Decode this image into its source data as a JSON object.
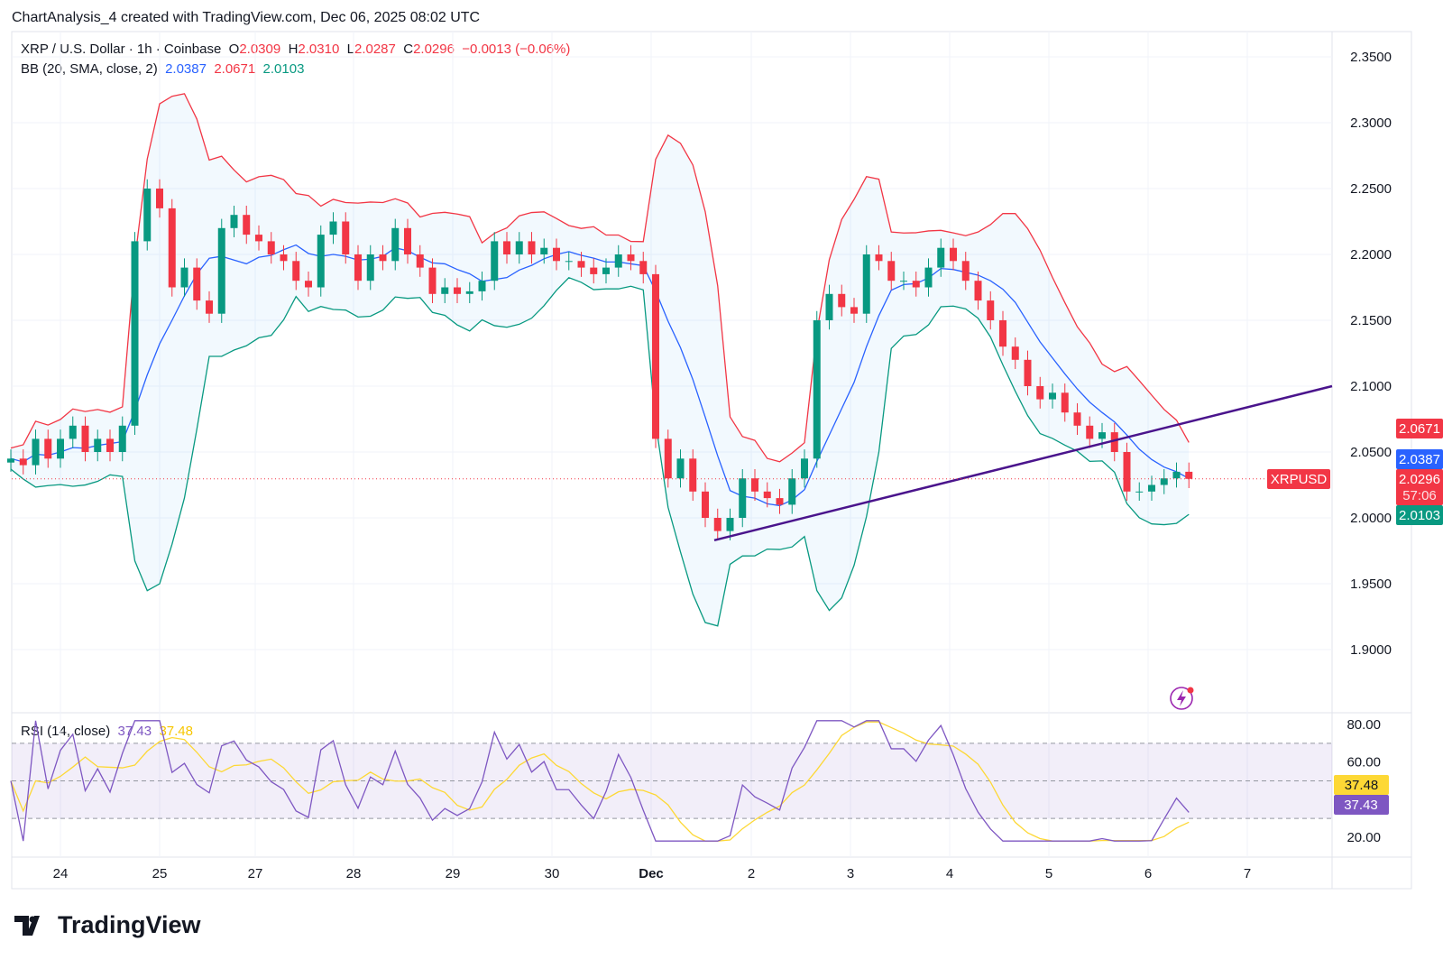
{
  "caption": "ChartAnalysis_4 created with TradingView.com, Dec 06, 2025 08:02 UTC",
  "symbol": {
    "title": "XRP / U.S. Dollar · 1h · Coinbase",
    "o_label": "O",
    "o": "2.0309",
    "h_label": "H",
    "h": "2.0310",
    "l_label": "L",
    "l": "2.0287",
    "c_label": "C",
    "c": "2.0296",
    "change": "−0.0013 (−0.06%)"
  },
  "bb": {
    "title": "BB (20, SMA, close, 2)",
    "basis": "2.0387",
    "upper": "2.0671",
    "lower": "2.0103"
  },
  "rsi": {
    "title": "RSI (14, close)",
    "value": "37.43",
    "ma": "37.48"
  },
  "badges": {
    "upper": "2.0671",
    "basis": "2.0387",
    "price": "2.0296",
    "countdown": "57:06",
    "lower": "2.0103",
    "ticker": "XRPUSD",
    "rsi_ma": "37.48",
    "rsi": "37.43"
  },
  "logo": "TradingView",
  "colors": {
    "up": "#089981",
    "down": "#f23645",
    "bb_upper": "#f23645",
    "bb_basis": "#2962ff",
    "bb_lower": "#089981",
    "rsi": "#7e57c2",
    "rsi_ma": "#fdd835",
    "trendline": "#4a148c"
  },
  "chart_data": {
    "type": "candlestick",
    "price_axis": {
      "ticks": [
        "2.3500",
        "2.3000",
        "2.2500",
        "2.2000",
        "2.1500",
        "2.1000",
        "2.0500",
        "2.0000",
        "1.9500",
        "1.9000"
      ],
      "range": [
        1.86,
        2.37
      ]
    },
    "rsi_axis": {
      "ticks": [
        "80.00",
        "60.00",
        "20.00"
      ],
      "range": [
        15,
        85
      ],
      "bands": [
        70,
        50,
        30
      ]
    },
    "x_ticks": [
      "24",
      "25",
      "27",
      "28",
      "29",
      "30",
      "Dec",
      "2",
      "3",
      "4",
      "5",
      "6",
      "7"
    ],
    "closes": [
      2.045,
      2.04,
      2.06,
      2.045,
      2.06,
      2.07,
      2.05,
      2.06,
      2.05,
      2.07,
      2.21,
      2.25,
      2.235,
      2.175,
      2.19,
      2.165,
      2.155,
      2.22,
      2.23,
      2.215,
      2.21,
      2.2,
      2.195,
      2.18,
      2.175,
      2.215,
      2.225,
      2.2,
      2.18,
      2.2,
      2.195,
      2.22,
      2.2,
      2.19,
      2.17,
      2.175,
      2.17,
      2.172,
      2.18,
      2.21,
      2.2,
      2.21,
      2.2,
      2.205,
      2.195,
      2.195,
      2.19,
      2.185,
      2.19,
      2.2,
      2.195,
      2.185,
      2.06,
      2.03,
      2.045,
      2.02,
      2.0,
      1.99,
      2.0,
      2.03,
      2.02,
      2.015,
      2.01,
      2.03,
      2.045,
      2.15,
      2.17,
      2.16,
      2.155,
      2.2,
      2.195,
      2.18,
      2.18,
      2.175,
      2.19,
      2.205,
      2.195,
      2.18,
      2.165,
      2.15,
      2.13,
      2.12,
      2.1,
      2.09,
      2.095,
      2.08,
      2.07,
      2.06,
      2.065,
      2.05,
      2.02,
      2.02,
      2.025,
      2.03,
      2.035,
      2.0296
    ],
    "trendline": {
      "start_price": 1.983,
      "end_price": 2.1
    }
  }
}
